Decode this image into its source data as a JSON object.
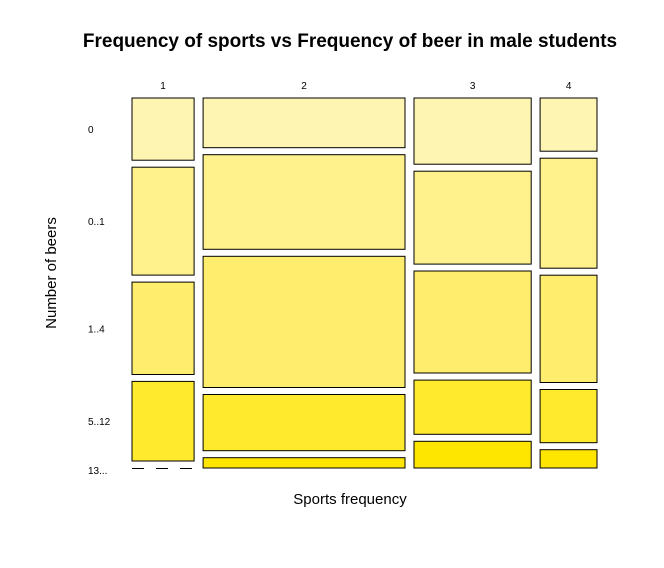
{
  "chart_data": {
    "type": "mosaic",
    "title": "Frequency of sports vs Frequency of beer in male students",
    "xlabel": "Sports frequency",
    "ylabel": "Number of beers",
    "x_categories": [
      "1",
      "2",
      "3",
      "4"
    ],
    "y_categories": [
      "0",
      "0..1",
      "1..4",
      "5..12",
      "13..."
    ],
    "column_widths": [
      0.107,
      0.348,
      0.202,
      0.098
    ],
    "cell_heights": [
      [
        0.068,
        0.118,
        0.101,
        0.087,
        0.0
      ],
      [
        0.053,
        0.101,
        0.14,
        0.06,
        0.011
      ],
      [
        0.072,
        0.101,
        0.111,
        0.059,
        0.029
      ],
      [
        0.058,
        0.12,
        0.117,
        0.058,
        0.02
      ]
    ],
    "colors": [
      "#fff5b3",
      "#fff18b",
      "#ffee6e",
      "#ffea2e",
      "#ffe600"
    ],
    "grid": false,
    "legend": "none"
  }
}
